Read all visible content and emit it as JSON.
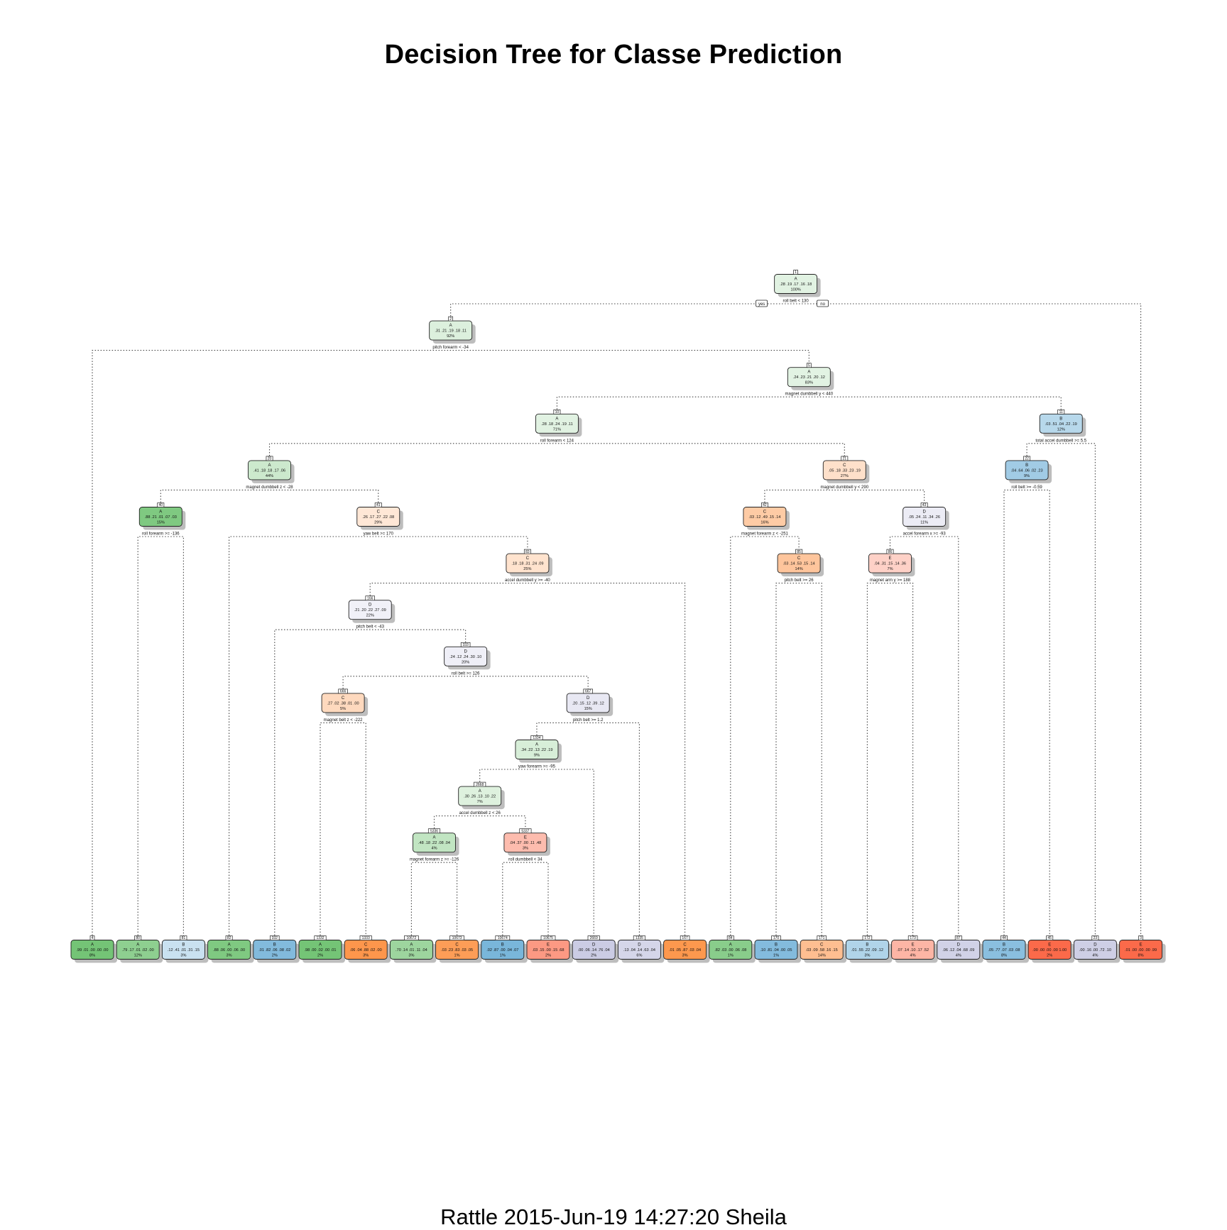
{
  "title": "Decision Tree for Classe Prediction",
  "footer": "Rattle 2015-Jun-19 14:27:20 Sheila",
  "branch_labels": {
    "yes": "yes",
    "no": "no"
  },
  "class_colors": {
    "A": "#74c476",
    "B": "#6baed6",
    "C": "#fd8d3c",
    "D": "#bcbddc",
    "E": "#fb6a4a"
  },
  "tree": {
    "id": 1,
    "cls": "A",
    "probs": ".28 .19 .17 .16 .18",
    "pct": "100%",
    "split": "roll_belt < 130",
    "children": [
      {
        "id": 2,
        "cls": "A",
        "probs": ".31 .21 .19 .18 .11",
        "pct": "92%",
        "split": "pitch_forearm < -34",
        "children": [
          {
            "id": 4,
            "cls": "A",
            "probs": ".99 .01 .00 .00 .00",
            "pct": "8%",
            "leaf": true
          },
          {
            "id": 5,
            "cls": "A",
            "probs": ".24 .23 .21 .20 .12",
            "pct": "83%",
            "split": "magnet_dumbbell_y < 440",
            "children": [
              {
                "id": 10,
                "cls": "A",
                "probs": ".28 .18 .24 .19 .11",
                "pct": "71%",
                "split": "roll_forearm < 124",
                "children": [
                  {
                    "id": 20,
                    "cls": "A",
                    "probs": ".41 .18 .18 .17 .06",
                    "pct": "44%",
                    "split": "magnet_dumbbell_z < -28",
                    "children": [
                      {
                        "id": 40,
                        "cls": "A",
                        "probs": ".88 .21 .01 .07 .03",
                        "pct": "15%",
                        "split": "roll_forearm >= -136",
                        "children": [
                          {
                            "id": 80,
                            "cls": "A",
                            "probs": ".79 .17 .01 .02 .00",
                            "pct": "12%",
                            "leaf": true
                          },
                          {
                            "id": 81,
                            "cls": "B",
                            "probs": ".12 .41 .01 .31 .15",
                            "pct": "3%",
                            "leaf": true
                          }
                        ]
                      },
                      {
                        "id": 41,
                        "cls": "C",
                        "probs": ".26 .17 .27 .22 .08",
                        "pct": "29%",
                        "split": "yaw_belt >= 170",
                        "children": [
                          {
                            "id": 82,
                            "cls": "A",
                            "probs": ".88 .06 .00 .06 .00",
                            "pct": "3%",
                            "leaf": true
                          },
                          {
                            "id": 83,
                            "cls": "C",
                            "probs": ".18 .18 .31 .24 .09",
                            "pct": "25%",
                            "split": "accel_dumbbell_y >= -40",
                            "children": [
                              {
                                "id": 166,
                                "cls": "D",
                                "probs": ".21 .20 .22 .27 .09",
                                "pct": "22%",
                                "split": "pitch_belt < -43",
                                "children": [
                                  {
                                    "id": 332,
                                    "cls": "B",
                                    "probs": ".01 .82 .06 .08 .02",
                                    "pct": "2%",
                                    "leaf": true
                                  },
                                  {
                                    "id": 333,
                                    "cls": "D",
                                    "probs": ".24 .12 .24 .30 .10",
                                    "pct": "20%",
                                    "split": "roll_belt >= 126",
                                    "children": [
                                      {
                                        "id": 666,
                                        "cls": "C",
                                        "probs": ".27 .02 .38 .01 .00",
                                        "pct": "5%",
                                        "split": "magnet_belt_z < -222",
                                        "children": [
                                          {
                                            "id": 1332,
                                            "cls": "A",
                                            "probs": ".98 .00 .02 .00 .01",
                                            "pct": "2%",
                                            "leaf": true
                                          },
                                          {
                                            "id": 1333,
                                            "cls": "C",
                                            "probs": ".06 .04 .88 .02 .00",
                                            "pct": "3%",
                                            "leaf": true
                                          }
                                        ]
                                      },
                                      {
                                        "id": 667,
                                        "cls": "D",
                                        "probs": ".20 .15 .12 .39 .12",
                                        "pct": "15%",
                                        "split": "pitch_belt >= 1.2",
                                        "children": [
                                          {
                                            "id": 1334,
                                            "cls": "A",
                                            "probs": ".34 .22 .13 .22 .19",
                                            "pct": "9%",
                                            "split": "yaw_forearm >= -95",
                                            "children": [
                                              {
                                                "id": 2668,
                                                "cls": "A",
                                                "probs": ".30 .26 .13 .10 .22",
                                                "pct": "7%",
                                                "split": "accel_dumbbell_z < 26",
                                                "children": [
                                                  {
                                                    "id": 5336,
                                                    "cls": "A",
                                                    "probs": ".48 .18 .22 .08 .04",
                                                    "pct": "4%",
                                                    "split": "magnet_forearm_z >= -126",
                                                    "children": [
                                                      {
                                                        "id": 10672,
                                                        "cls": "A",
                                                        "probs": ".70 .14 .01 .11 .04",
                                                        "pct": "3%",
                                                        "leaf": true
                                                      },
                                                      {
                                                        "id": 10673,
                                                        "cls": "C",
                                                        "probs": ".03 .23 .83 .03 .05",
                                                        "pct": "1%",
                                                        "leaf": true
                                                      }
                                                    ]
                                                  },
                                                  {
                                                    "id": 5337,
                                                    "cls": "E",
                                                    "probs": ".04 .37 .00 .11 .48",
                                                    "pct": "3%",
                                                    "split": "roll_dumbbell < 34",
                                                    "children": [
                                                      {
                                                        "id": 10674,
                                                        "cls": "B",
                                                        "probs": ".02 .87 .00 .04 .07",
                                                        "pct": "1%",
                                                        "leaf": true
                                                      },
                                                      {
                                                        "id": 10675,
                                                        "cls": "E",
                                                        "probs": ".03 .15 .00 .15 .68",
                                                        "pct": "2%",
                                                        "leaf": true
                                                      }
                                                    ]
                                                  }
                                                ]
                                              },
                                              {
                                                "id": 2669,
                                                "cls": "D",
                                                "probs": ".00 .06 .14 .76 .04",
                                                "pct": "2%",
                                                "leaf": true
                                              }
                                            ]
                                          },
                                          {
                                            "id": 1335,
                                            "cls": "D",
                                            "probs": ".13 .04 .14 .63 .04",
                                            "pct": "6%",
                                            "leaf": true
                                          }
                                        ]
                                      }
                                    ]
                                  }
                                ]
                              },
                              {
                                "id": 167,
                                "cls": "C",
                                "probs": ".01 .05 .87 .03 .04",
                                "pct": "3%",
                                "leaf": true
                              }
                            ]
                          }
                        ]
                      }
                    ]
                  },
                  {
                    "id": 21,
                    "cls": "C",
                    "probs": ".05 .18 .33 .23 .19",
                    "pct": "27%",
                    "split": "magnet_dumbbell_y < 290",
                    "children": [
                      {
                        "id": 42,
                        "cls": "C",
                        "probs": ".03 .12 .49 .15 .14",
                        "pct": "16%",
                        "split": "magnet_forearm_z < -251",
                        "children": [
                          {
                            "id": 84,
                            "cls": "A",
                            "probs": ".82 .03 .00 .06 .08",
                            "pct": "1%",
                            "leaf": true
                          },
                          {
                            "id": 85,
                            "cls": "C",
                            "probs": ".03 .14 .53 .15 .14",
                            "pct": "14%",
                            "split": "pitch_belt >= 26",
                            "children": [
                              {
                                "id": 170,
                                "cls": "B",
                                "probs": ".10 .81 .04 .00 .05",
                                "pct": "1%",
                                "leaf": true
                              },
                              {
                                "id": 171,
                                "cls": "C",
                                "probs": ".03 .09 .58 .16 .15",
                                "pct": "14%",
                                "leaf": true
                              }
                            ]
                          }
                        ]
                      },
                      {
                        "id": 43,
                        "cls": "D",
                        "probs": ".05 .24 .11 .34 .26",
                        "pct": "11%",
                        "split": "accel_forearm_x >= -93",
                        "children": [
                          {
                            "id": 86,
                            "cls": "E",
                            "probs": ".04 .31 .15 .14 .36",
                            "pct": "7%",
                            "split": "magnet_arm_y >= 188",
                            "children": [
                              {
                                "id": 172,
                                "cls": "B",
                                "probs": ".01 .55 .22 .09 .12",
                                "pct": "3%",
                                "leaf": true
                              },
                              {
                                "id": 173,
                                "cls": "E",
                                "probs": ".07 .14 .10 .17 .52",
                                "pct": "4%",
                                "leaf": true
                              }
                            ]
                          },
                          {
                            "id": 87,
                            "cls": "D",
                            "probs": ".06 .12 .04 .68 .09",
                            "pct": "4%",
                            "leaf": true
                          }
                        ]
                      }
                    ]
                  }
                ]
              },
              {
                "id": 11,
                "cls": "B",
                "probs": ".03 .51 .04 .22 .19",
                "pct": "12%",
                "split": "total_accel_dumbbell >= 5.5",
                "children": [
                  {
                    "id": 22,
                    "cls": "B",
                    "probs": ".04 .64 .06 .02 .23",
                    "pct": "9%",
                    "split": "roll_belt >= -0.59",
                    "children": [
                      {
                        "id": 44,
                        "cls": "B",
                        "probs": ".05 .77 .07 .03 .08",
                        "pct": "8%",
                        "leaf": true
                      },
                      {
                        "id": 45,
                        "cls": "E",
                        "probs": ".00 .00 .00 .00 1.00",
                        "pct": "2%",
                        "leaf": true
                      }
                    ]
                  },
                  {
                    "id": 23,
                    "cls": "D",
                    "probs": ".00 .16 .00 .72 .10",
                    "pct": "4%",
                    "leaf": true
                  }
                ]
              }
            ]
          }
        ]
      },
      {
        "id": 3,
        "cls": "E",
        "probs": ".01 .00 .00 .00 .99",
        "pct": "8%",
        "leaf": true
      }
    ]
  }
}
